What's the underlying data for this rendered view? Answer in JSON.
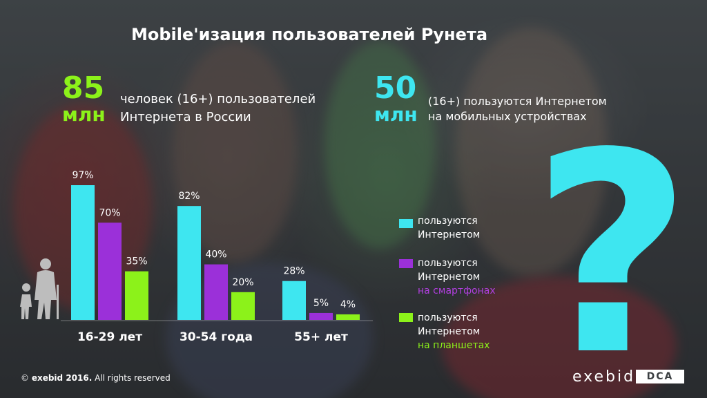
{
  "title": "Mobile'изация пользователей Рунета",
  "stats": [
    {
      "number": "85",
      "unit": "млн",
      "line1": "человек (16+) пользователей",
      "line2": "Интернета в России"
    },
    {
      "number": "50",
      "unit": "млн",
      "line1": "(16+) пользуются Интернетом",
      "line2": "на мобильных устройствах"
    }
  ],
  "legend": [
    {
      "line1": "пользуются",
      "line2": "Интернетом",
      "line3": "",
      "color": "#3ee6f0"
    },
    {
      "line1": "пользуются",
      "line2": "Интернетом",
      "line3": "на смартфонах",
      "color": "#9b30d9"
    },
    {
      "line1": "пользуются",
      "line2": "Интернетом",
      "line3": "на планшетах",
      "color": "#8cf21a"
    }
  ],
  "chart_data": {
    "type": "bar",
    "categories": [
      "16-29 лет",
      "30-54 года",
      "55+ лет"
    ],
    "series": [
      {
        "values": [
          97,
          82,
          28
        ],
        "labels": [
          "97%",
          "82%",
          "28%"
        ],
        "color": "#3ee6f0"
      },
      {
        "values": [
          70,
          40,
          5
        ],
        "labels": [
          "70%",
          "40%",
          "5%"
        ],
        "color": "#9b30d9"
      },
      {
        "values": [
          35,
          20,
          4
        ],
        "labels": [
          "35%",
          "20%",
          "4%"
        ],
        "color": "#8cf21a"
      }
    ],
    "ylim": [
      0,
      100
    ]
  },
  "footer": {
    "symbol": "©",
    "company": "exebid 2016.",
    "rights": "All rights reserved"
  },
  "brand": {
    "name": "exebid",
    "tag": "DCA"
  },
  "icons": {
    "question": "?",
    "people": "elderly-and-child-icon"
  }
}
